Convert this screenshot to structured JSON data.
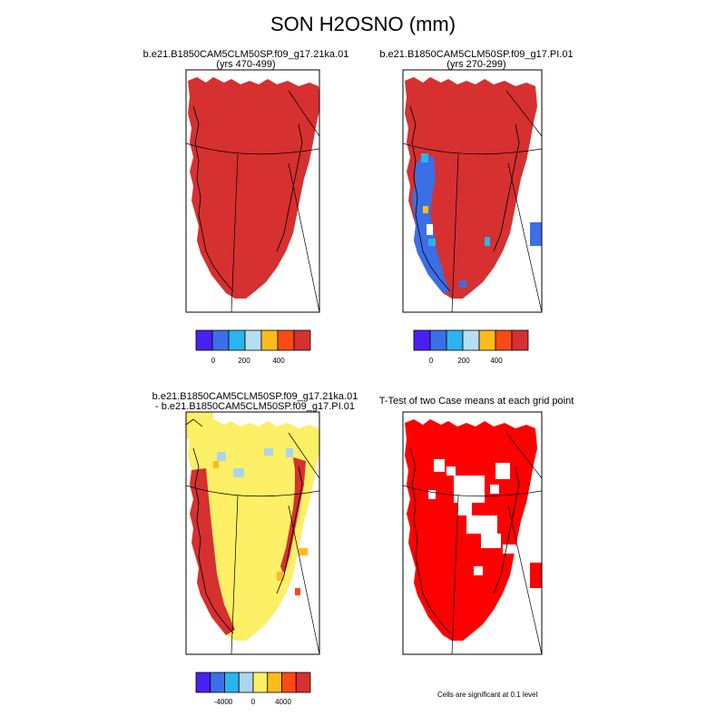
{
  "figure": {
    "title": "SON H2OSNO (mm)",
    "panels": [
      {
        "id": "top-left",
        "title_line1": "b.e21.B1850CAM5CLM50SP.f09_g17.21ka.01",
        "title_line2": "(yrs 470-499)",
        "colorbar": {
          "colors": [
            "#4a1ff2",
            "#3b6fe6",
            "#2ab4f0",
            "#b6def2",
            "#fdbc1b",
            "#fb4a13",
            "#d63030"
          ],
          "tick_labels": [
            "0",
            "200",
            "400"
          ]
        }
      },
      {
        "id": "top-right",
        "title_line1": "b.e21.B1850CAM5CLM50SP.f09_g17.PI.01",
        "title_line2": "(yrs 270-299)",
        "colorbar": {
          "colors": [
            "#4a1ff2",
            "#3b6fe6",
            "#2ab4f0",
            "#b6def2",
            "#fdbc1b",
            "#fb4a13",
            "#d63030"
          ],
          "tick_labels": [
            "0",
            "200",
            "400"
          ]
        }
      },
      {
        "id": "bottom-left",
        "title_line1": "b.e21.B1850CAM5CLM50SP.f09_g17.21ka.01",
        "title_line2": "- b.e21.B1850CAM5CLM50SP.f09_g17.PI.01",
        "colorbar": {
          "colors": [
            "#4a1ff2",
            "#3b6fe6",
            "#2ab4f0",
            "#a9d6ee",
            "#fdef66",
            "#fdbc1b",
            "#fb4a13",
            "#d63030"
          ],
          "tick_labels": [
            "-4000",
            "0",
            "4000"
          ]
        }
      },
      {
        "id": "bottom-right",
        "title_line1": "T-Test of two Case means at each grid point",
        "note": "Cells are significant at 0.1 level"
      }
    ]
  },
  "colors": {
    "snow_red": "#d63030",
    "blue_low": "#3b6fe6",
    "cyan_low": "#2ab4f0",
    "diff_yellow": "#fdef66",
    "diff_lightblue": "#a9d6ee",
    "diff_orange": "#fdbc1b",
    "sig_red": "#ff0000"
  }
}
